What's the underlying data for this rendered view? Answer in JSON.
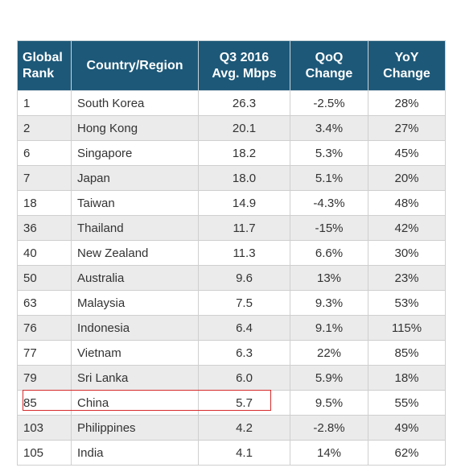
{
  "table": {
    "header": [
      "Global\nRank",
      "Country/Region",
      "Q3 2016\nAvg. Mbps",
      "QoQ\nChange",
      "YoY\nChange"
    ],
    "rows": [
      [
        "1",
        "South Korea",
        "26.3",
        "-2.5%",
        "28%"
      ],
      [
        "2",
        "Hong Kong",
        "20.1",
        "3.4%",
        "27%"
      ],
      [
        "6",
        "Singapore",
        "18.2",
        "5.3%",
        "45%"
      ],
      [
        "7",
        "Japan",
        "18.0",
        "5.1%",
        "20%"
      ],
      [
        "18",
        "Taiwan",
        "14.9",
        "-4.3%",
        "48%"
      ],
      [
        "36",
        "Thailand",
        "11.7",
        "-15%",
        "42%"
      ],
      [
        "40",
        "New Zealand",
        "11.3",
        "6.6%",
        "30%"
      ],
      [
        "50",
        "Australia",
        "9.6",
        "13%",
        "23%"
      ],
      [
        "63",
        "Malaysia",
        "7.5",
        "9.3%",
        "53%"
      ],
      [
        "76",
        "Indonesia",
        "6.4",
        "9.1%",
        "115%"
      ],
      [
        "77",
        "Vietnam",
        "6.3",
        "22%",
        "85%"
      ],
      [
        "79",
        "Sri Lanka",
        "6.0",
        "5.9%",
        "18%"
      ],
      [
        "85",
        "China",
        "5.7",
        "9.5%",
        "55%"
      ],
      [
        "103",
        "Philippines",
        "4.2",
        "-2.8%",
        "49%"
      ],
      [
        "105",
        "India",
        "4.1",
        "14%",
        "62%"
      ]
    ]
  }
}
